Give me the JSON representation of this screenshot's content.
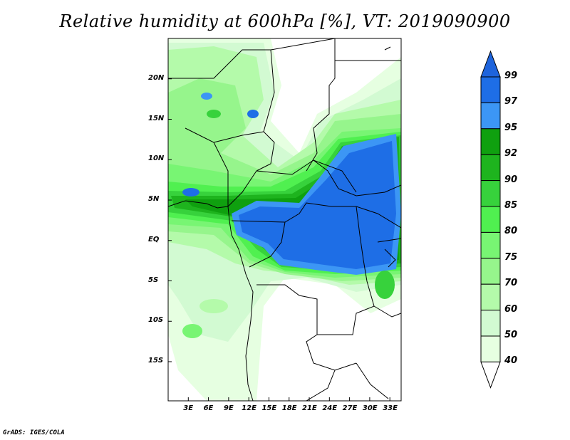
{
  "title": "Relative humidity at 600hPa [%], VT: 2019090900",
  "credit": "GrADS: IGES/COLA",
  "map": {
    "lat_labels": [
      "20N",
      "15N",
      "10N",
      "5N",
      "EQ",
      "5S",
      "10S",
      "15S"
    ],
    "lon_labels": [
      "3E",
      "6E",
      "9E",
      "12E",
      "15E",
      "18E",
      "21E",
      "24E",
      "27E",
      "30E",
      "33E"
    ]
  },
  "colorbar": {
    "labels": [
      "99",
      "97",
      "95",
      "92",
      "90",
      "85",
      "80",
      "75",
      "70",
      "60",
      "50",
      "40"
    ],
    "colors": [
      "#1e6ee6",
      "#3c96f5",
      "#0fa00f",
      "#1eb41e",
      "#37d23c",
      "#50f050",
      "#78f573",
      "#96f58c",
      "#b4faaa",
      "#d2fad2",
      "#e6ffe1"
    ],
    "top_arrow_color": "#1e64dc",
    "bottom_arrow_color": "#ffffff"
  }
}
